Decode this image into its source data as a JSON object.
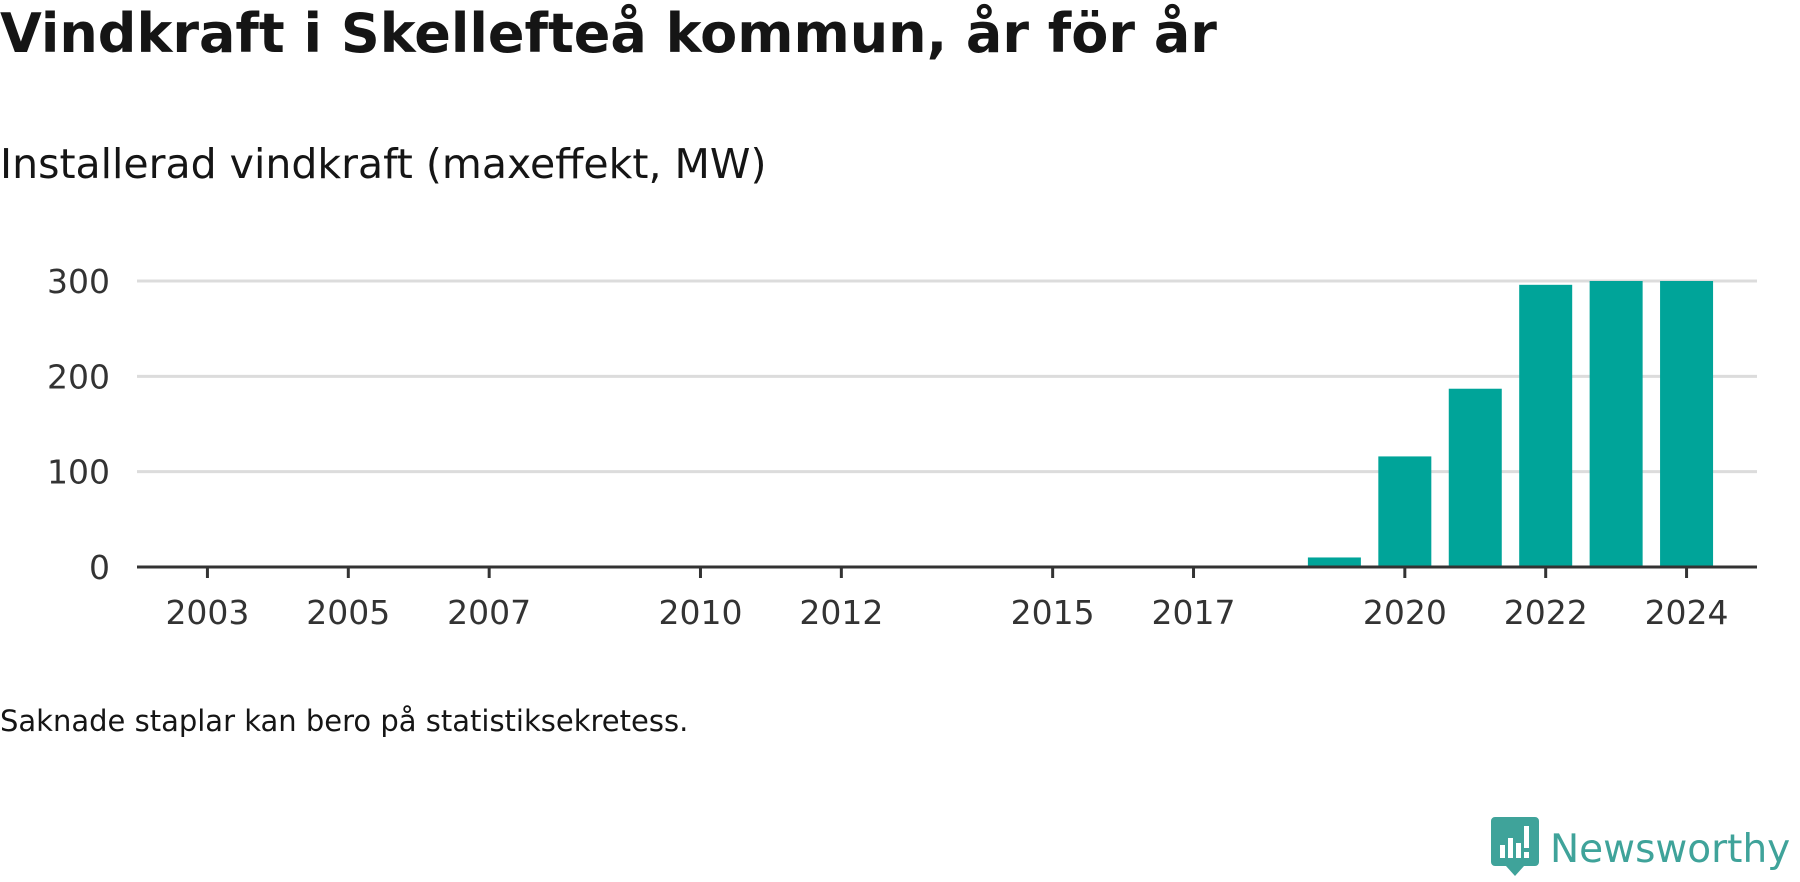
{
  "title": "Vindkraft i Skellefteå kommun, år för år",
  "subtitle": "Installerad vindkraft (maxeffekt, MW)",
  "note": "Saknade staplar kan bero på statistiksekretess.",
  "brand": {
    "name": "Newsworthy",
    "icon": "newsworthy-logo-icon",
    "color": "#3fa39a"
  },
  "chart_data": {
    "type": "bar",
    "title": "",
    "xlabel": "",
    "ylabel": "",
    "ylim": [
      0,
      300
    ],
    "yticks": [
      0,
      100,
      200,
      300
    ],
    "xlim": [
      2002,
      2025
    ],
    "xticks": [
      2003,
      2005,
      2007,
      2010,
      2012,
      2015,
      2017,
      2020,
      2022,
      2024
    ],
    "grid": true,
    "bar_color": "#00a499",
    "categories": [
      2019,
      2020,
      2021,
      2022,
      2023,
      2024
    ],
    "values": [
      10,
      116,
      187,
      296,
      300,
      300
    ]
  }
}
